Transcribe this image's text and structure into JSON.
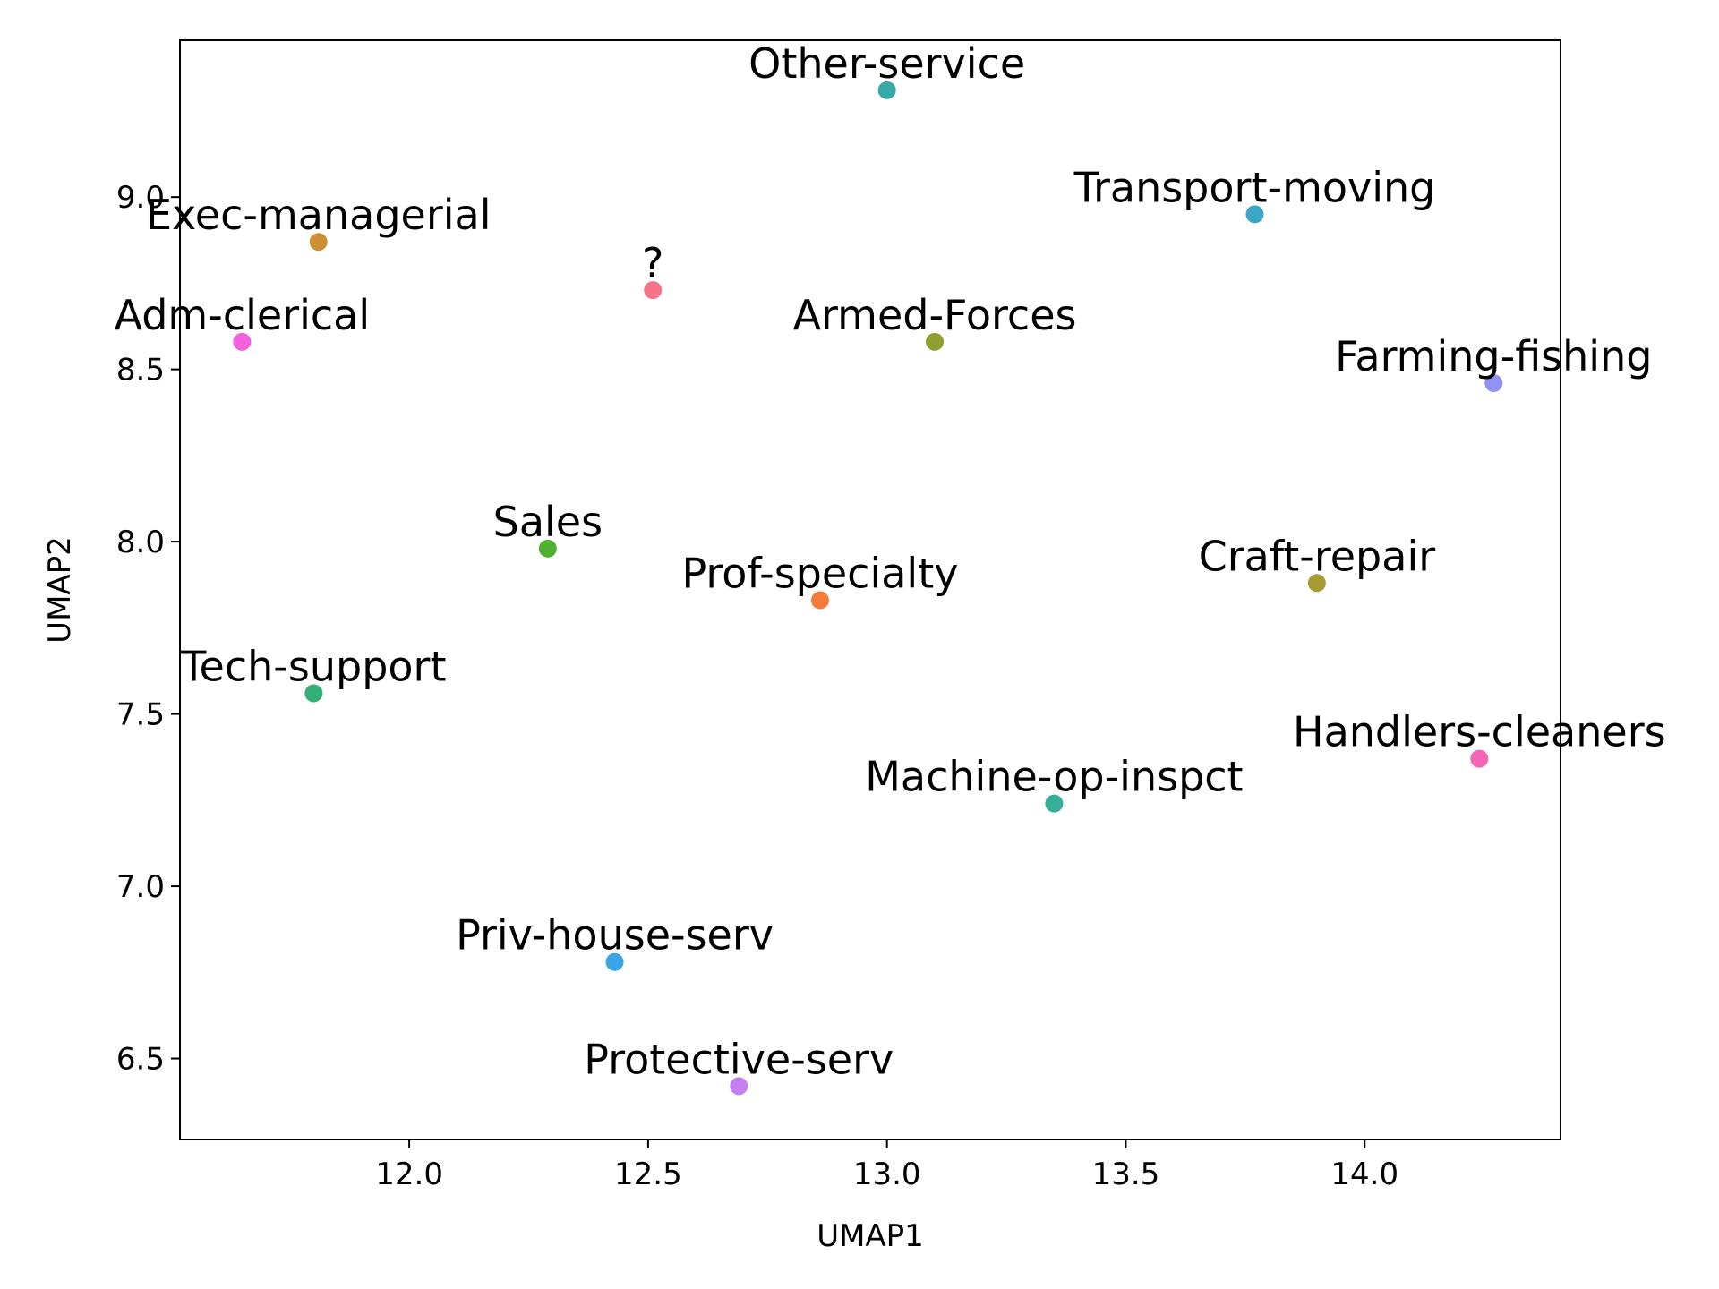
{
  "chart_data": {
    "type": "scatter",
    "xlabel": "UMAP1",
    "ylabel": "UMAP2",
    "xlim": [
      11.52,
      14.41
    ],
    "ylim": [
      6.265,
      9.455
    ],
    "xticks": [
      12.0,
      12.5,
      13.0,
      13.5,
      14.0
    ],
    "xtick_labels": [
      "12.0",
      "12.5",
      "13.0",
      "13.5",
      "14.0"
    ],
    "yticks": [
      6.5,
      7.0,
      7.5,
      8.0,
      8.5,
      9.0
    ],
    "ytick_labels": [
      "6.5",
      "7.0",
      "7.5",
      "8.0",
      "8.5",
      "9.0"
    ],
    "grid": false,
    "points": [
      {
        "label": "?",
        "x": 12.51,
        "y": 8.73,
        "color": "#f77189"
      },
      {
        "label": "Adm-clerical",
        "x": 11.65,
        "y": 8.58,
        "color": "#f561dd"
      },
      {
        "label": "Armed-Forces",
        "x": 13.1,
        "y": 8.58,
        "color": "#8fa031"
      },
      {
        "label": "Craft-repair",
        "x": 13.9,
        "y": 7.88,
        "color": "#a79b33"
      },
      {
        "label": "Exec-managerial",
        "x": 11.81,
        "y": 8.87,
        "color": "#cd8f34"
      },
      {
        "label": "Farming-fishing",
        "x": 14.27,
        "y": 8.46,
        "color": "#9192f3"
      },
      {
        "label": "Handlers-cleaners",
        "x": 14.24,
        "y": 7.37,
        "color": "#f565b6"
      },
      {
        "label": "Machine-op-inspct",
        "x": 13.35,
        "y": 7.24,
        "color": "#36ae9a"
      },
      {
        "label": "Other-service",
        "x": 13.0,
        "y": 9.31,
        "color": "#38a9a8"
      },
      {
        "label": "Priv-house-serv",
        "x": 12.43,
        "y": 6.78,
        "color": "#3ba4e6"
      },
      {
        "label": "Prof-specialty",
        "x": 12.86,
        "y": 7.83,
        "color": "#f47b3a"
      },
      {
        "label": "Protective-serv",
        "x": 12.69,
        "y": 6.42,
        "color": "#c57ff3"
      },
      {
        "label": "Sales",
        "x": 12.29,
        "y": 7.98,
        "color": "#50b131"
      },
      {
        "label": "Tech-support",
        "x": 11.8,
        "y": 7.56,
        "color": "#34af75"
      },
      {
        "label": "Transport-moving",
        "x": 13.77,
        "y": 8.95,
        "color": "#39a7c6"
      }
    ]
  }
}
